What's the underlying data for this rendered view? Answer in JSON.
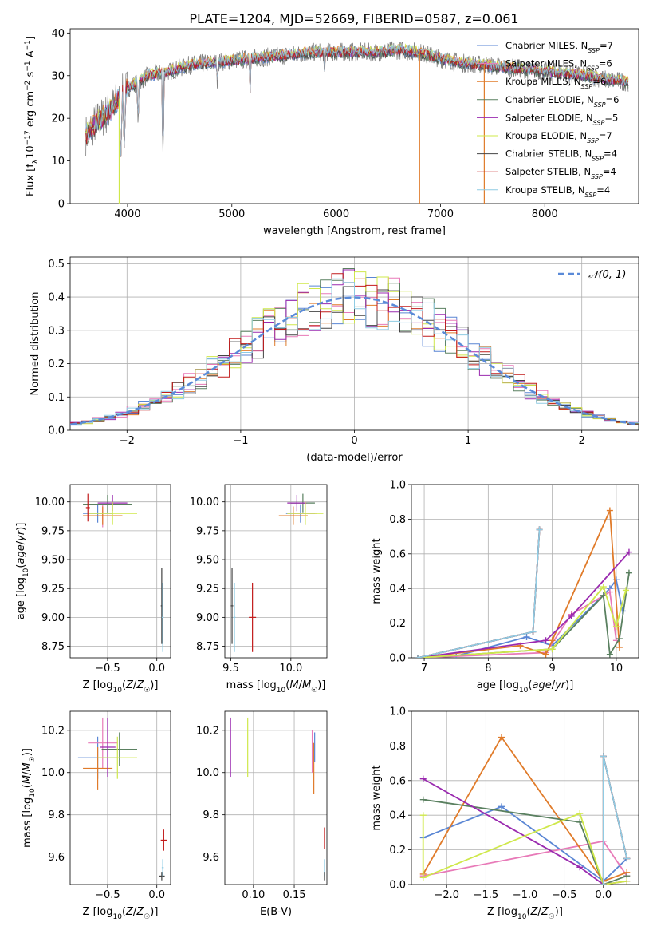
{
  "title": "PLATE=1204, MJD=52669, FIBERID=0587, z=0.061",
  "colors": {
    "chabrier_miles": "#5a86d4",
    "salpeter_miles": "#e87ab8",
    "kroupa_miles": "#e07b2a",
    "chabrier_elodie": "#5a8060",
    "salpeter_elodie": "#9a2aaf",
    "kroupa_elodie": "#cfe84a",
    "chabrier_stelib": "#444444",
    "salpeter_stelib": "#c21a1a",
    "kroupa_stelib": "#8fcbe3",
    "spectrum_data": "#808080",
    "normal_curve": "#5a8ad8"
  },
  "chart_data": [
    {
      "id": "spectrum",
      "type": "line",
      "xlabel": "wavelength [Angstrom, rest frame]",
      "ylabel": "Flux [f_λ 10^-17 erg cm^-2 s^-1 A^-1]",
      "xlim": [
        3450,
        8900
      ],
      "ylim": [
        0,
        41
      ],
      "xticks": [
        4000,
        5000,
        6000,
        7000,
        8000
      ],
      "yticks": [
        0,
        10,
        20,
        30,
        40
      ],
      "grid": false,
      "legend_position": "top-right",
      "continuum": {
        "x": [
          3600,
          3700,
          3800,
          3900,
          4000,
          4200,
          4400,
          4600,
          4800,
          5000,
          5200,
          5400,
          5600,
          5800,
          6000,
          6200,
          6400,
          6600,
          6800,
          7000,
          7200,
          7400,
          7600,
          7800,
          8000,
          8200,
          8400,
          8600,
          8800
        ],
        "y": [
          16,
          19,
          21,
          24,
          27,
          30,
          31,
          32.5,
          33,
          33.5,
          34,
          34.5,
          35,
          35.5,
          35.5,
          35.5,
          35.5,
          36,
          35.5,
          34,
          33,
          32.5,
          32,
          31.5,
          31,
          30.5,
          30,
          29,
          28.5
        ]
      },
      "absorption_lines": [
        {
          "x": 3934,
          "y": 9
        },
        {
          "x": 3969,
          "y": 12
        },
        {
          "x": 4101,
          "y": 18
        },
        {
          "x": 4340,
          "y": 12
        },
        {
          "x": 4861,
          "y": 26
        },
        {
          "x": 5175,
          "y": 25
        },
        {
          "x": 5890,
          "y": 29
        },
        {
          "x": 6563,
          "y": 38
        }
      ],
      "series": [
        {
          "name": "Chabrier MILES, N_SSP=7",
          "color": "#5a86d4"
        },
        {
          "name": "Salpeter MILES, N_SSP=6",
          "color": "#e87ab8"
        },
        {
          "name": "Kroupa MILES, N_SSP=6",
          "color": "#e07b2a"
        },
        {
          "name": "Chabrier ELODIE, N_SSP=6",
          "color": "#5a8060"
        },
        {
          "name": "Salpeter ELODIE, N_SSP=5",
          "color": "#9a2aaf"
        },
        {
          "name": "Kroupa ELODIE, N_SSP=7",
          "color": "#cfe84a"
        },
        {
          "name": "Chabrier STELIB, N_SSP=4",
          "color": "#444444"
        },
        {
          "name": "Salpeter STELIB, N_SSP=4",
          "color": "#c21a1a"
        },
        {
          "name": "Kroupa STELIB, N_SSP=4",
          "color": "#8fcbe3"
        }
      ],
      "drop_lines": [
        {
          "x": 3920,
          "color": "#cfe84a"
        },
        {
          "x": 6800,
          "color": "#e07b2a"
        },
        {
          "x": 7420,
          "color": "#e07b2a"
        }
      ]
    },
    {
      "id": "residuals",
      "type": "step",
      "xlabel": "(data-model)/error",
      "ylabel": "Normed distribution",
      "xlim": [
        -2.5,
        2.5
      ],
      "ylim": [
        0,
        0.52
      ],
      "xticks": [
        -2,
        -1,
        0,
        1,
        2
      ],
      "yticks": [
        0.0,
        0.1,
        0.2,
        0.3,
        0.4,
        0.5
      ],
      "grid": true,
      "legend_position": "top-right",
      "legend": "𝒩(0, 1)",
      "bin_width": 0.1
    },
    {
      "id": "age_vs_Z",
      "type": "errorbar",
      "xlabel": "Z [log10(Z/Z☉)]",
      "ylabel": "age  [log10(age/yr)]",
      "xlim": [
        -0.88,
        0.14
      ],
      "ylim": [
        8.65,
        10.15
      ],
      "xticks": [
        -0.5,
        0.0
      ],
      "yticks": [
        8.75,
        9.0,
        9.25,
        9.5,
        9.75,
        10.0
      ],
      "grid": true,
      "points": [
        {
          "color": "#5a86d4",
          "x": -0.6,
          "xerr": 0.15,
          "y": 9.9,
          "yerr": 0.08
        },
        {
          "color": "#e87ab8",
          "x": -0.55,
          "xerr": 0.15,
          "y": 9.88,
          "yerr": 0.1
        },
        {
          "color": "#e07b2a",
          "x": -0.55,
          "xerr": 0.2,
          "y": 9.88,
          "yerr": 0.08
        },
        {
          "color": "#5a8060",
          "x": -0.5,
          "xerr": 0.25,
          "y": 9.98,
          "yerr": 0.08
        },
        {
          "color": "#9a2aaf",
          "x": -0.45,
          "xerr": 0.15,
          "y": 9.99,
          "yerr": 0.07
        },
        {
          "color": "#cfe84a",
          "x": -0.45,
          "xerr": 0.25,
          "y": 9.9,
          "yerr": 0.1
        },
        {
          "color": "#444444",
          "x": 0.05,
          "xerr": 0.01,
          "y": 9.1,
          "yerr": 0.33
        },
        {
          "color": "#c21a1a",
          "x": -0.7,
          "xerr": 0.02,
          "y": 9.95,
          "yerr": 0.12
        },
        {
          "color": "#8fcbe3",
          "x": 0.06,
          "xerr": 0.01,
          "y": 9.0,
          "yerr": 0.3
        }
      ]
    },
    {
      "id": "age_vs_mass",
      "type": "errorbar",
      "xlabel": "mass [log10(M/M☉)]",
      "ylabel": "",
      "xlim": [
        9.45,
        10.3
      ],
      "ylim": [
        8.65,
        10.15
      ],
      "xticks": [
        9.5,
        10.0
      ],
      "yticks": [
        8.75,
        9.0,
        9.25,
        9.5,
        9.75,
        10.0
      ],
      "grid": true,
      "points": [
        {
          "color": "#5a86d4",
          "x": 10.08,
          "xerr": 0.12,
          "y": 9.9,
          "yerr": 0.08
        },
        {
          "color": "#e87ab8",
          "x": 10.12,
          "xerr": 0.1,
          "y": 9.9,
          "yerr": 0.1
        },
        {
          "color": "#e07b2a",
          "x": 10.02,
          "xerr": 0.12,
          "y": 9.88,
          "yerr": 0.08
        },
        {
          "color": "#5a8060",
          "x": 10.1,
          "xerr": 0.1,
          "y": 9.99,
          "yerr": 0.08
        },
        {
          "color": "#9a2aaf",
          "x": 10.05,
          "xerr": 0.08,
          "y": 9.99,
          "yerr": 0.07
        },
        {
          "color": "#cfe84a",
          "x": 10.12,
          "xerr": 0.15,
          "y": 9.9,
          "yerr": 0.1
        },
        {
          "color": "#444444",
          "x": 9.51,
          "xerr": 0.01,
          "y": 9.1,
          "yerr": 0.33
        },
        {
          "color": "#c21a1a",
          "x": 9.68,
          "xerr": 0.03,
          "y": 9.0,
          "yerr": 0.3
        },
        {
          "color": "#8fcbe3",
          "x": 9.53,
          "xerr": 0.01,
          "y": 9.0,
          "yerr": 0.3
        }
      ]
    },
    {
      "id": "weight_vs_age",
      "type": "line",
      "xlabel": "age  [log10(age/yr)]",
      "ylabel": "mass weight",
      "xlim": [
        6.8,
        10.35
      ],
      "ylim": [
        0,
        1.0
      ],
      "xticks": [
        7,
        8,
        9,
        10
      ],
      "yticks": [
        0.0,
        0.2,
        0.4,
        0.6,
        0.8,
        1.0
      ],
      "grid": true,
      "series": [
        {
          "color": "#5a86d4",
          "x": [
            6.9,
            7.5,
            8.6,
            9.0,
            9.9,
            10.0,
            10.1
          ],
          "y": [
            0.0,
            0.01,
            0.12,
            0.07,
            0.4,
            0.45,
            0.27
          ]
        },
        {
          "color": "#e87ab8",
          "x": [
            6.9,
            8.9,
            9.3,
            9.9,
            10.0
          ],
          "y": [
            0.0,
            0.03,
            0.25,
            0.38,
            0.1
          ]
        },
        {
          "color": "#e07b2a",
          "x": [
            6.9,
            8.5,
            8.9,
            9.0,
            9.9,
            10.05
          ],
          "y": [
            0.0,
            0.07,
            0.02,
            0.1,
            0.85,
            0.06
          ]
        },
        {
          "color": "#5a8060",
          "x": [
            6.9,
            9.0,
            9.8,
            9.9,
            10.05,
            10.2
          ],
          "y": [
            0.0,
            0.05,
            0.36,
            0.02,
            0.11,
            0.49
          ]
        },
        {
          "color": "#9a2aaf",
          "x": [
            6.9,
            8.9,
            9.3,
            10.2
          ],
          "y": [
            0.0,
            0.1,
            0.24,
            0.61
          ]
        },
        {
          "color": "#cfe84a",
          "x": [
            6.9,
            9.0,
            9.8,
            10.0,
            10.15
          ],
          "y": [
            0.0,
            0.05,
            0.41,
            0.18,
            0.39
          ]
        },
        {
          "color": "#444444",
          "x": [
            6.9,
            8.7,
            8.8
          ],
          "y": [
            0.0,
            0.15,
            0.74
          ]
        },
        {
          "color": "#c21a1a",
          "x": [
            6.9,
            8.7,
            8.8
          ],
          "y": [
            0.0,
            0.15,
            0.74
          ]
        },
        {
          "color": "#8fcbe3",
          "x": [
            6.9,
            8.7,
            8.8
          ],
          "y": [
            0.0,
            0.15,
            0.74
          ]
        }
      ]
    },
    {
      "id": "mass_vs_Z",
      "type": "errorbar",
      "xlabel": "Z [log10(Z/Z☉)]",
      "ylabel": "mass [log10(M/M☉)]",
      "xlim": [
        -0.88,
        0.14
      ],
      "ylim": [
        9.47,
        10.29
      ],
      "xticks": [
        -0.5,
        0.0
      ],
      "yticks": [
        9.6,
        9.8,
        10.0,
        10.2
      ],
      "grid": true,
      "points": [
        {
          "color": "#5a86d4",
          "x": -0.6,
          "xerr": 0.2,
          "y": 10.07,
          "yerr": 0.1
        },
        {
          "color": "#e87ab8",
          "x": -0.55,
          "xerr": 0.15,
          "y": 10.14,
          "yerr": 0.12
        },
        {
          "color": "#e07b2a",
          "x": -0.6,
          "xerr": 0.15,
          "y": 10.02,
          "yerr": 0.1
        },
        {
          "color": "#5a8060",
          "x": -0.38,
          "xerr": 0.18,
          "y": 10.11,
          "yerr": 0.08
        },
        {
          "color": "#9a2aaf",
          "x": -0.5,
          "xerr": 0.08,
          "y": 10.12,
          "yerr": 0.14
        },
        {
          "color": "#cfe84a",
          "x": -0.4,
          "xerr": 0.2,
          "y": 10.07,
          "yerr": 0.1
        },
        {
          "color": "#444444",
          "x": 0.05,
          "xerr": 0.03,
          "y": 9.51,
          "yerr": 0.02
        },
        {
          "color": "#c21a1a",
          "x": 0.07,
          "xerr": 0.03,
          "y": 9.68,
          "yerr": 0.05
        },
        {
          "color": "#8fcbe3",
          "x": 0.06,
          "xerr": 0.01,
          "y": 9.55,
          "yerr": 0.04
        }
      ]
    },
    {
      "id": "mass_vs_ebv",
      "type": "errorbar",
      "xlabel": "E(B-V)",
      "ylabel": "",
      "xlim": [
        0.065,
        0.19
      ],
      "ylim": [
        9.47,
        10.29
      ],
      "xticks": [
        0.1,
        0.15
      ],
      "yticks": [
        9.6,
        9.8,
        10.0,
        10.2
      ],
      "grid": true,
      "points": [
        {
          "color": "#9a2aaf",
          "x": 0.072,
          "xerr": 0.0,
          "y": 10.12,
          "yerr": 0.14
        },
        {
          "color": "#cfe84a",
          "x": 0.093,
          "xerr": 0.0,
          "y": 10.12,
          "yerr": 0.14
        },
        {
          "color": "#e87ab8",
          "x": 0.172,
          "xerr": 0.0,
          "y": 10.1,
          "yerr": 0.1
        },
        {
          "color": "#e07b2a",
          "x": 0.174,
          "xerr": 0.0,
          "y": 10.02,
          "yerr": 0.12
        },
        {
          "color": "#5a86d4",
          "x": 0.175,
          "xerr": 0.0,
          "y": 10.12,
          "yerr": 0.07
        },
        {
          "color": "#c21a1a",
          "x": 0.187,
          "xerr": 0.0,
          "y": 9.69,
          "yerr": 0.05
        },
        {
          "color": "#8fcbe3",
          "x": 0.187,
          "xerr": 0.0,
          "y": 9.55,
          "yerr": 0.04
        },
        {
          "color": "#444444",
          "x": 0.187,
          "xerr": 0.0,
          "y": 9.51,
          "yerr": 0.02
        }
      ]
    },
    {
      "id": "weight_vs_Z",
      "type": "line",
      "xlabel": "Z [log10(Z/Z☉)]",
      "ylabel": "mass weight",
      "xlim": [
        -2.45,
        0.45
      ],
      "ylim": [
        0,
        1.0
      ],
      "xticks": [
        -2.0,
        -1.5,
        -1.0,
        -0.5,
        0.0
      ],
      "yticks": [
        0.0,
        0.2,
        0.4,
        0.6,
        0.8,
        1.0
      ],
      "grid": true,
      "series": [
        {
          "color": "#5a86d4",
          "x": [
            -2.3,
            -1.3,
            0.0,
            0.3
          ],
          "y": [
            0.27,
            0.45,
            0.02,
            0.15
          ]
        },
        {
          "color": "#e87ab8",
          "x": [
            -2.3,
            0.0,
            0.3
          ],
          "y": [
            0.05,
            0.25,
            0.05
          ]
        },
        {
          "color": "#e07b2a",
          "x": [
            -2.3,
            -1.3,
            0.0,
            0.3
          ],
          "y": [
            0.06,
            0.85,
            0.02,
            0.07
          ]
        },
        {
          "color": "#5a8060",
          "x": [
            -2.3,
            -0.3,
            0.0,
            0.3
          ],
          "y": [
            0.49,
            0.36,
            0.0,
            0.05
          ]
        },
        {
          "color": "#9a2aaf",
          "x": [
            -2.3,
            -0.3,
            0.0,
            0.3
          ],
          "y": [
            0.61,
            0.1,
            0.0,
            0.02
          ]
        },
        {
          "color": "#cfe84a",
          "x": [
            -2.3,
            -2.3,
            -0.3,
            0.0,
            0.3
          ],
          "y": [
            0.4,
            0.04,
            0.41,
            0.0,
            0.02
          ]
        },
        {
          "color": "#444444",
          "x": [
            0.0,
            0.0,
            0.3
          ],
          "y": [
            0.0,
            0.74,
            0.15
          ]
        },
        {
          "color": "#c21a1a",
          "x": [
            0.0,
            0.0,
            0.3
          ],
          "y": [
            0.0,
            0.74,
            0.15
          ]
        },
        {
          "color": "#8fcbe3",
          "x": [
            0.0,
            0.0,
            0.3
          ],
          "y": [
            0.0,
            0.74,
            0.15
          ]
        }
      ]
    }
  ]
}
